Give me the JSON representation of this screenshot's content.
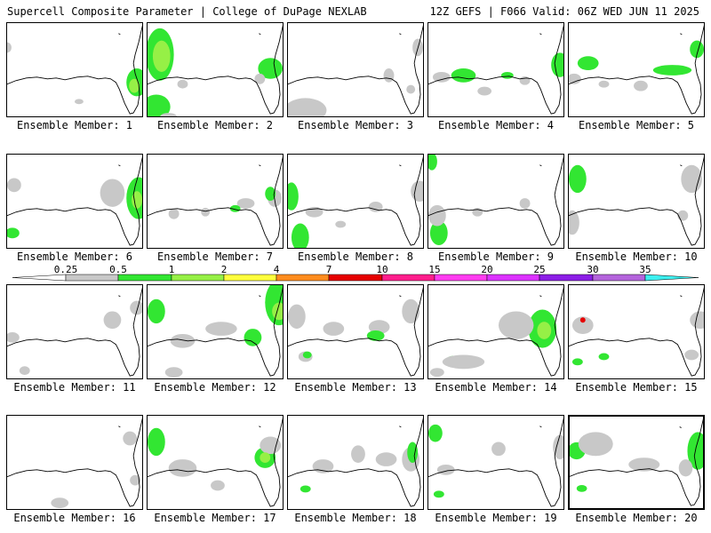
{
  "header": {
    "left_title": "Supercell Composite Parameter | College of DuPage NEXLAB",
    "right_title": "12Z GEFS | F066 Valid: 06Z WED JUN 11 2025"
  },
  "panel_label_prefix": "Ensemble Member: ",
  "members": [
    {
      "id": "1"
    },
    {
      "id": "2"
    },
    {
      "id": "3"
    },
    {
      "id": "4"
    },
    {
      "id": "5"
    },
    {
      "id": "6"
    },
    {
      "id": "7"
    },
    {
      "id": "8"
    },
    {
      "id": "9"
    },
    {
      "id": "10"
    },
    {
      "id": "11"
    },
    {
      "id": "12"
    },
    {
      "id": "13"
    },
    {
      "id": "14"
    },
    {
      "id": "15"
    },
    {
      "id": "16"
    },
    {
      "id": "17"
    },
    {
      "id": "18"
    },
    {
      "id": "19"
    },
    {
      "id": "20"
    }
  ],
  "highlighted_member": "20",
  "colorbar": {
    "levels": [
      "0.25",
      "0.5",
      "1",
      "2",
      "4",
      "7",
      "10",
      "15",
      "20",
      "25",
      "30",
      "35"
    ],
    "colors": [
      "#ffffff",
      "#c8c8c8",
      "#32e632",
      "#96f046",
      "#ffff3c",
      "#ff8c1e",
      "#e60000",
      "#ff1e8c",
      "#ff3cf0",
      "#dc32ff",
      "#8c1ee6",
      "#b464dc",
      "#3cf0f0"
    ]
  },
  "colors": {
    "light_gray": "#c8c8c8",
    "green": "#32e632",
    "light_green": "#96f046",
    "red": "#e60000"
  }
}
